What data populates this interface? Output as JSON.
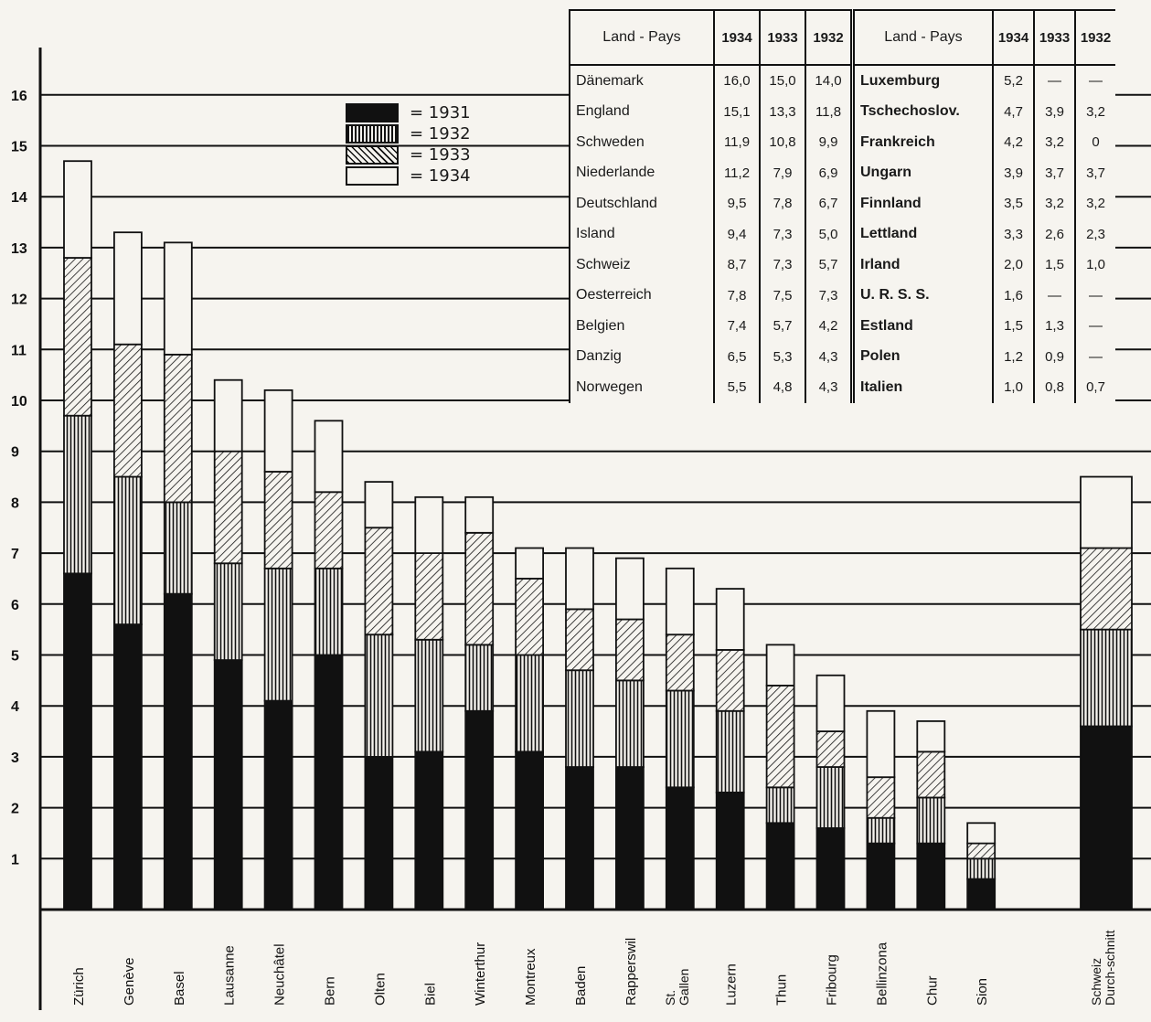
{
  "chart_data": {
    "type": "bar",
    "stacked": true,
    "categories": [
      "Zürich",
      "Genève",
      "Basel",
      "Lausanne",
      "Neuchâtel",
      "Bern",
      "Olten",
      "Biel",
      "Winterthur",
      "Montreux",
      "Baden",
      "Rapperswil",
      "St. Gallen",
      "Luzern",
      "Thun",
      "Fribourg",
      "Bellinzona",
      "Chur",
      "Sion",
      "Schweiz Durch-schnitt"
    ],
    "series": [
      {
        "name": "1931",
        "values": [
          6.6,
          5.6,
          6.2,
          4.9,
          4.1,
          5.0,
          3.0,
          3.1,
          3.9,
          3.1,
          2.8,
          2.8,
          2.4,
          2.3,
          1.7,
          1.6,
          1.3,
          1.3,
          0.6,
          3.6
        ]
      },
      {
        "name": "1932",
        "values": [
          3.1,
          2.9,
          1.8,
          1.9,
          2.6,
          1.7,
          2.4,
          2.2,
          1.3,
          1.9,
          1.9,
          1.7,
          1.9,
          1.6,
          0.7,
          1.2,
          0.5,
          0.9,
          0.4,
          1.9
        ]
      },
      {
        "name": "1933",
        "values": [
          3.1,
          2.6,
          2.9,
          2.2,
          1.9,
          1.5,
          2.1,
          1.7,
          2.2,
          1.5,
          1.2,
          1.2,
          1.1,
          1.2,
          2.0,
          0.7,
          0.8,
          0.9,
          0.3,
          1.6
        ]
      },
      {
        "name": "1934",
        "values": [
          1.9,
          2.2,
          2.2,
          1.4,
          1.6,
          1.4,
          0.9,
          1.1,
          0.7,
          0.6,
          1.2,
          1.2,
          1.3,
          1.2,
          0.8,
          1.1,
          1.3,
          0.6,
          0.4,
          1.4
        ]
      }
    ],
    "ylim": [
      0,
      16
    ],
    "yticks": [
      1,
      2,
      3,
      4,
      5,
      6,
      7,
      8,
      9,
      10,
      11,
      12,
      13,
      14,
      15,
      16
    ],
    "legend_position": "top-center",
    "grid": true
  },
  "legend": {
    "items": [
      {
        "label": "= 1931",
        "pattern": "solid"
      },
      {
        "label": "= 1932",
        "pattern": "vertical"
      },
      {
        "label": "= 1933",
        "pattern": "diagonal"
      },
      {
        "label": "= 1934",
        "pattern": "blank"
      }
    ]
  },
  "tables": {
    "left": {
      "headers": [
        "Land - Pays",
        "1934",
        "1933",
        "1932"
      ],
      "rows": [
        [
          "Dänemark",
          "16,0",
          "15,0",
          "14,0"
        ],
        [
          "England",
          "15,1",
          "13,3",
          "11,8"
        ],
        [
          "Schweden",
          "11,9",
          "10,8",
          "9,9"
        ],
        [
          "Niederlande",
          "11,2",
          "7,9",
          "6,9"
        ],
        [
          "Deutschland",
          "9,5",
          "7,8",
          "6,7"
        ],
        [
          "Island",
          "9,4",
          "7,3",
          "5,0"
        ],
        [
          "Schweiz",
          "8,7",
          "7,3",
          "5,7"
        ],
        [
          "Oesterreich",
          "7,8",
          "7,5",
          "7,3"
        ],
        [
          "Belgien",
          "7,4",
          "5,7",
          "4,2"
        ],
        [
          "Danzig",
          "6,5",
          "5,3",
          "4,3"
        ],
        [
          "Norwegen",
          "5,5",
          "4,8",
          "4,3"
        ]
      ]
    },
    "right": {
      "headers": [
        "Land - Pays",
        "1934",
        "1933",
        "1932"
      ],
      "rows": [
        [
          "Luxemburg",
          "5,2",
          "—",
          "—"
        ],
        [
          "Tschechoslov.",
          "4,7",
          "3,9",
          "3,2"
        ],
        [
          "Frankreich",
          "4,2",
          "3,2",
          "0"
        ],
        [
          "Ungarn",
          "3,9",
          "3,7",
          "3,7"
        ],
        [
          "Finnland",
          "3,5",
          "3,2",
          "3,2"
        ],
        [
          "Lettland",
          "3,3",
          "2,6",
          "2,3"
        ],
        [
          "Irland",
          "2,0",
          "1,5",
          "1,0"
        ],
        [
          "U. R. S. S.",
          "1,6",
          "—",
          "—"
        ],
        [
          "Estland",
          "1,5",
          "1,3",
          "—"
        ],
        [
          "Polen",
          "1,2",
          "0,9",
          "—"
        ],
        [
          "Italien",
          "1,0",
          "0,8",
          "0,7"
        ]
      ]
    }
  },
  "colors": {
    "ink": "#111111",
    "paper": "#f6f4ef"
  }
}
